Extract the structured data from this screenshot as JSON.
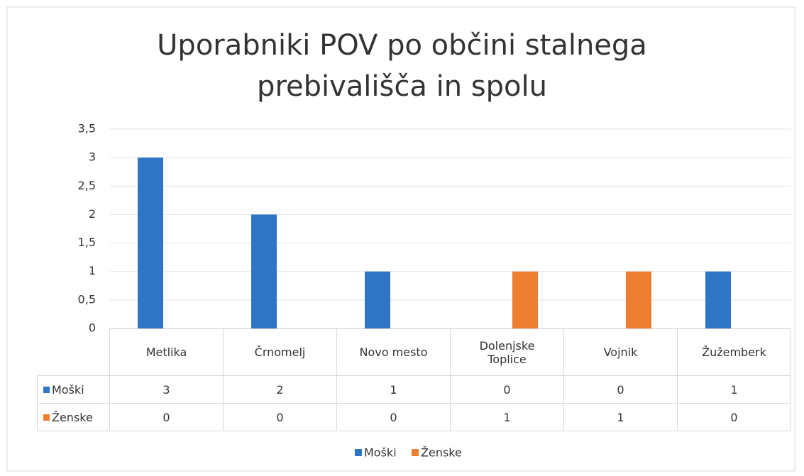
{
  "chart_data": {
    "type": "bar",
    "title": "Uporabniki POV po občini stalnega prebivališča in spolu",
    "categories": [
      "Metlika",
      "Črnomelj",
      "Novo mesto",
      "Dolenjske Toplice",
      "Vojnik",
      "Žužemberk"
    ],
    "series": [
      {
        "name": "Moški",
        "color": "#2e75c6",
        "values": [
          3,
          2,
          1,
          0,
          0,
          1
        ]
      },
      {
        "name": "Ženske",
        "color": "#ed7d31",
        "values": [
          0,
          0,
          0,
          1,
          1,
          0
        ]
      }
    ],
    "ylim": [
      0,
      3.5
    ],
    "yticks": [
      0,
      {
        "value": 0.5,
        "label": "0,5"
      },
      1,
      {
        "value": 1.5,
        "label": "1,5"
      },
      2,
      {
        "value": 2.5,
        "label": "2,5"
      },
      3,
      {
        "value": 3.5,
        "label": "3,5"
      }
    ],
    "grid": true,
    "legend": "bottom"
  }
}
